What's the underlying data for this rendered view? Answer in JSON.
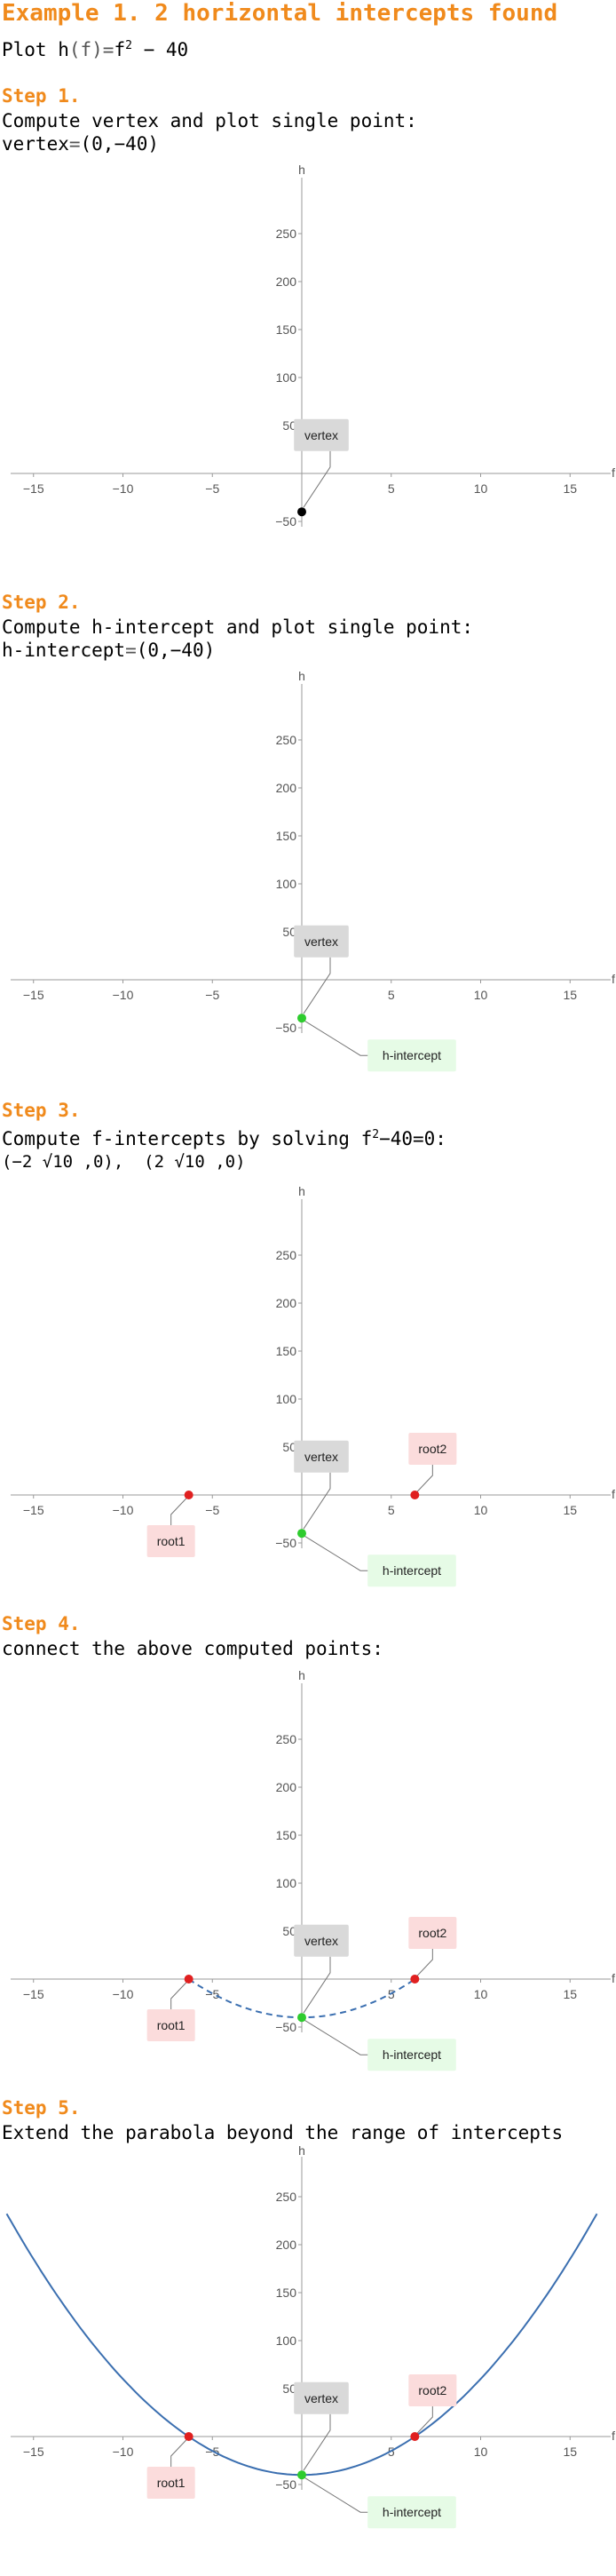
{
  "colors": {
    "title": "#f08a1c",
    "axis": "#999999",
    "tick_text": "#555555",
    "curve": "#3b6fb0",
    "vertex_point": "#000000",
    "intercept_point": "#2ecc2e",
    "root_point": "#e02020",
    "vertex_label_bg": "#d9d9d9",
    "h_label_bg": "#e6fbe6",
    "root_label_bg": "#fbdcdc"
  },
  "header": {
    "title": "Example 1. 2 horizontal intercepts found",
    "plot_prefix": "Plot h",
    "plot_arg": "(f)",
    "plot_eq": "=",
    "plot_base": "f",
    "plot_exp": "2",
    "plot_tail": " − 40"
  },
  "steps": [
    {
      "label": "Step 1.",
      "line1": "Compute vertex and plot single point:",
      "line2_name": "vertex",
      "line2_value": "(0,−40)"
    },
    {
      "label": "Step 2.",
      "line1": "Compute h-intercept and plot single point:",
      "line2_name": "h-intercept",
      "line2_value": "(0,−40)"
    },
    {
      "label": "Step 3.",
      "line1_prefix": "Compute f-intercepts by solving f",
      "line1_exp": "2",
      "line1_suffix": "−40=0:",
      "root_left": "(−2 √10 ,0),",
      "root_right": "(2 √10 ,0)"
    },
    {
      "label": "Step 4.",
      "line1": "connect the above computed points:"
    },
    {
      "label": "Step 5.",
      "line1": "Extend the parabola beyond the range of intercepts"
    }
  ],
  "annotations": {
    "vertex": "vertex",
    "h_intercept": "h-intercept",
    "root1": "root1",
    "root2": "root2"
  },
  "chart_data": [
    {
      "type": "scatter",
      "xlabel": "f",
      "ylabel": "h",
      "xlim": [
        -17,
        17
      ],
      "ylim": [
        -50,
        280
      ],
      "x_ticks": [
        -15,
        -10,
        -5,
        5,
        10,
        15
      ],
      "y_ticks": [
        -50,
        50,
        100,
        150,
        200,
        250
      ],
      "points": [
        {
          "name": "vertex",
          "x": 0,
          "y": -40
        }
      ],
      "curve": "none"
    },
    {
      "type": "scatter",
      "xlabel": "f",
      "ylabel": "h",
      "xlim": [
        -17,
        17
      ],
      "ylim": [
        -50,
        280
      ],
      "x_ticks": [
        -15,
        -10,
        -5,
        5,
        10,
        15
      ],
      "y_ticks": [
        -50,
        50,
        100,
        150,
        200,
        250
      ],
      "points": [
        {
          "name": "h-intercept",
          "x": 0,
          "y": -40
        }
      ],
      "labels": [
        "vertex",
        "h-intercept"
      ],
      "curve": "none"
    },
    {
      "type": "scatter",
      "xlabel": "f",
      "ylabel": "h",
      "xlim": [
        -17,
        17
      ],
      "ylim": [
        -50,
        280
      ],
      "x_ticks": [
        -15,
        -10,
        -5,
        5,
        10,
        15
      ],
      "y_ticks": [
        -50,
        50,
        100,
        150,
        200,
        250
      ],
      "points": [
        {
          "name": "h-intercept",
          "x": 0,
          "y": -40
        },
        {
          "name": "root1",
          "x": -6.32,
          "y": 0
        },
        {
          "name": "root2",
          "x": 6.32,
          "y": 0
        }
      ],
      "labels": [
        "vertex",
        "h-intercept",
        "root1",
        "root2"
      ],
      "curve": "none"
    },
    {
      "type": "line",
      "xlabel": "f",
      "ylabel": "h",
      "xlim": [
        -17,
        17
      ],
      "ylim": [
        -50,
        280
      ],
      "x_ticks": [
        -15,
        -10,
        -5,
        5,
        10,
        15
      ],
      "y_ticks": [
        -50,
        50,
        100,
        150,
        200,
        250
      ],
      "points": [
        {
          "name": "h-intercept",
          "x": 0,
          "y": -40
        },
        {
          "name": "root1",
          "x": -6.32,
          "y": 0
        },
        {
          "name": "root2",
          "x": 6.32,
          "y": 0
        }
      ],
      "labels": [
        "vertex",
        "h-intercept",
        "root1",
        "root2"
      ],
      "curve": "dashed",
      "curve_domain": [
        -6.32,
        6.32
      ]
    },
    {
      "type": "line",
      "xlabel": "f",
      "ylabel": "h",
      "xlim": [
        -17,
        17
      ],
      "ylim": [
        -50,
        280
      ],
      "x_ticks": [
        -15,
        -10,
        -5,
        5,
        10,
        15
      ],
      "y_ticks": [
        -50,
        50,
        100,
        150,
        200,
        250
      ],
      "points": [
        {
          "name": "h-intercept",
          "x": 0,
          "y": -40
        },
        {
          "name": "root1",
          "x": -6.32,
          "y": 0
        },
        {
          "name": "root2",
          "x": 6.32,
          "y": 0
        }
      ],
      "labels": [
        "vertex",
        "h-intercept",
        "root1",
        "root2"
      ],
      "curve": "solid",
      "curve_domain": [
        -16.5,
        16.5
      ]
    }
  ]
}
